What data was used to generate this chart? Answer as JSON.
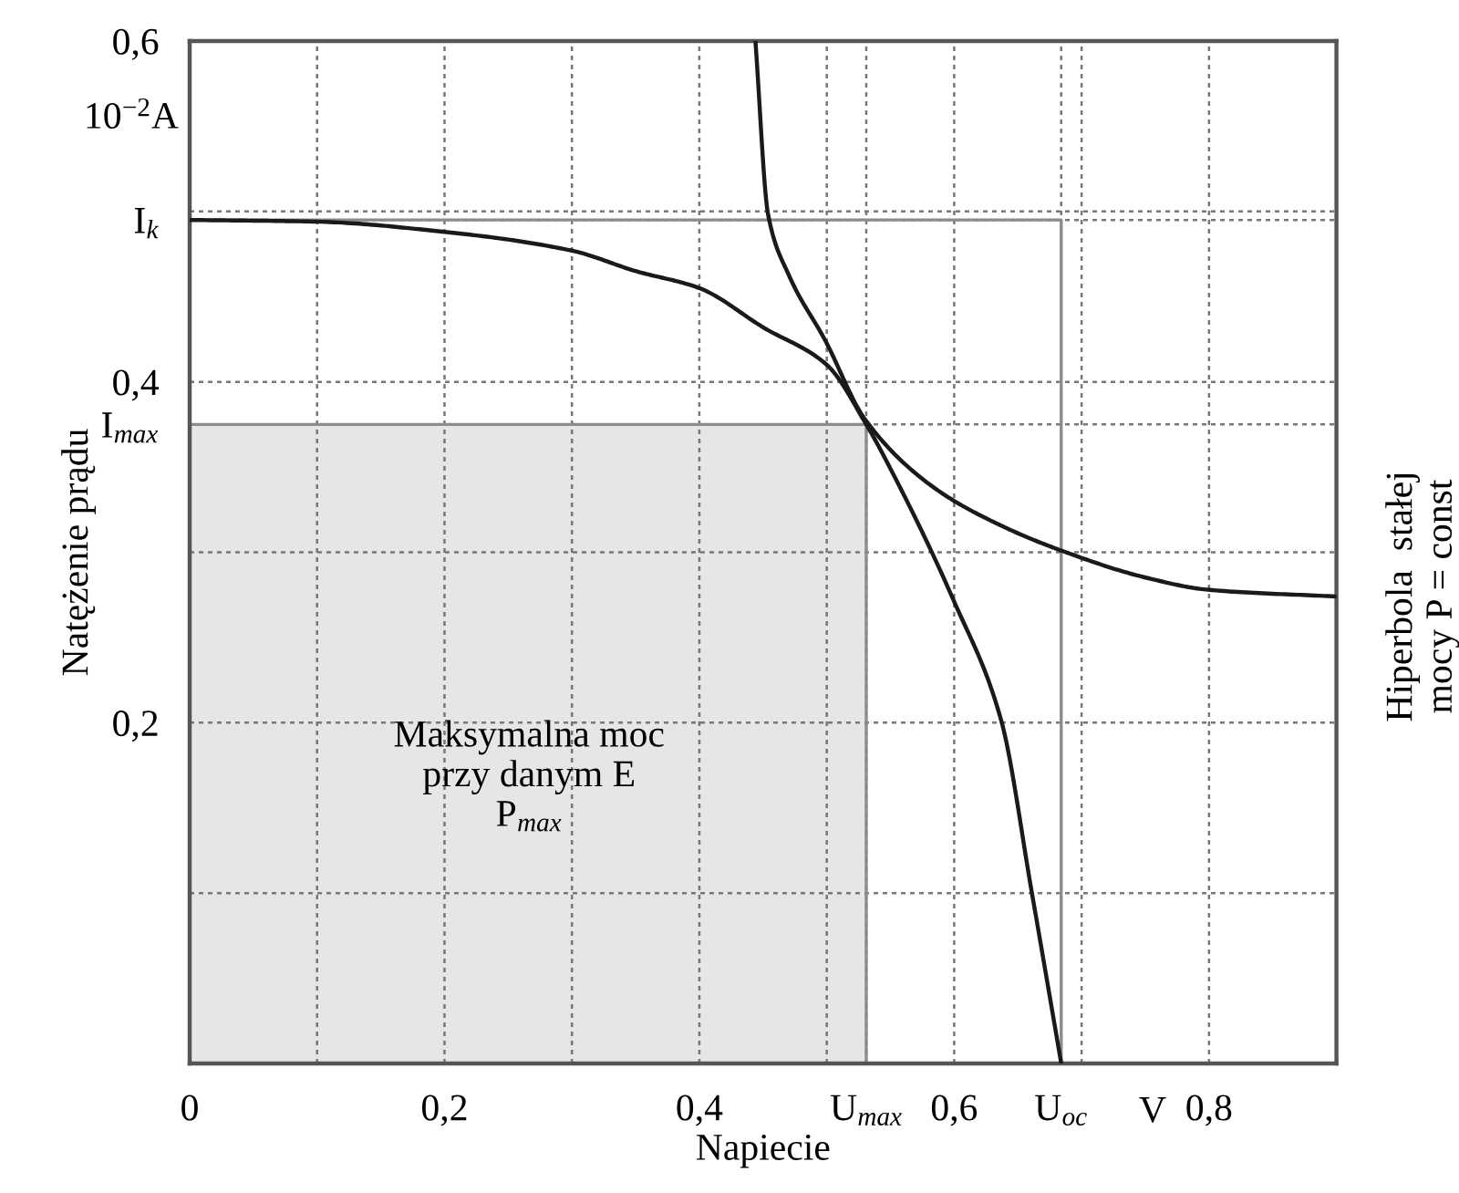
{
  "chart_data": {
    "type": "line",
    "xlabel": "Napiecie",
    "ylabel": "Natężenie prądu",
    "xlim": [
      0,
      0.9
    ],
    "ylim": [
      0,
      0.6
    ],
    "xticks": [
      {
        "value": 0,
        "label": "0"
      },
      {
        "value": 0.1,
        "label": null
      },
      {
        "value": 0.2,
        "label": "0,2"
      },
      {
        "value": 0.3,
        "label": null
      },
      {
        "value": 0.4,
        "label": "0,4"
      },
      {
        "value": 0.5,
        "label": null
      },
      {
        "value": 0.531,
        "label": "U$_{max}$"
      },
      {
        "value": 0.6,
        "label": "0,6"
      },
      {
        "value": 0.684,
        "label": "U$_{oc}$"
      },
      {
        "value": 0.7,
        "label": null
      },
      {
        "value": 0.8,
        "label": "0,8"
      }
    ],
    "yticks": [
      {
        "value": 0.1,
        "label": null
      },
      {
        "value": 0.2,
        "label": "0,2"
      },
      {
        "value": 0.3,
        "label": null
      },
      {
        "value": 0.375,
        "label": "I$_{max}$"
      },
      {
        "value": 0.4,
        "label": "0,4"
      },
      {
        "value": 0.495,
        "label": "I$_{k}$"
      },
      {
        "value": 0.5,
        "label": null
      },
      {
        "value": 0.6,
        "label": "0,6"
      }
    ],
    "grid": true,
    "series": [
      {
        "type": "area",
        "color": "#e6e6e6",
        "x": [
          0,
          0.531,
          0.531
        ],
        "values": [
          0.375,
          0.375,
          0
        ]
      },
      {
        "type": "line",
        "color": "#8c8c8c",
        "x": [
          0,
          0.684,
          0.684
        ],
        "values": [
          0.495,
          0.495,
          0
        ]
      },
      {
        "color": "#1a1a1a",
        "x": [
          0,
          0.1,
          0.2,
          0.3,
          0.35,
          0.4,
          0.45,
          0.5,
          0.531,
          0.55,
          0.6,
          0.637,
          0.661,
          0.684
        ],
        "values": [
          0.495,
          0.494,
          0.488,
          0.477,
          0.465,
          0.455,
          0.432,
          0.41,
          0.375,
          0.349,
          0.271,
          0.201,
          0.1,
          0
        ]
      },
      {
        "color": "#1a1a1a",
        "x": [
          0.444,
          0.454,
          0.47,
          0.499,
          0.53,
          0.584,
          0.633,
          0.684,
          0.751,
          0.799,
          0.9
        ],
        "values": [
          0.6,
          0.498,
          0.463,
          0.424,
          0.378,
          0.338,
          0.317,
          0.301,
          0.285,
          0.278,
          0.274
        ]
      }
    ],
    "annotations": [
      "Maksymalna moc\nprzy danym E\nP$_{max}$",
      "10$^{−2}$A",
      "V",
      "Hiperbola  stałej\nmocy P = const"
    ]
  }
}
